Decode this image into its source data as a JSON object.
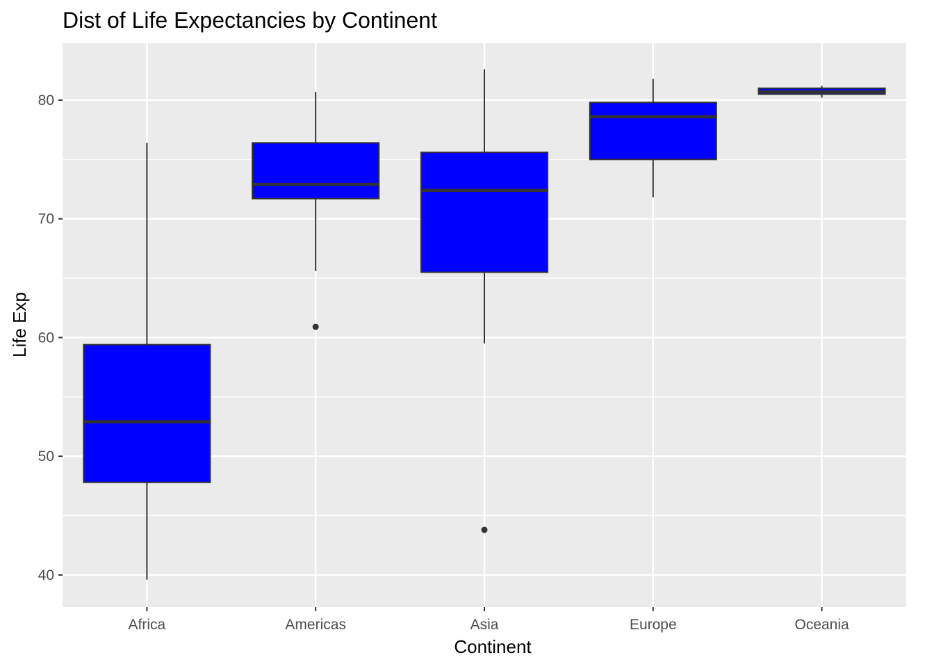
{
  "chart_data": {
    "type": "boxplot",
    "title": "Dist of Life Expectancies by Continent",
    "xlabel": "Continent",
    "ylabel": "Life Exp",
    "categories": [
      "Africa",
      "Americas",
      "Asia",
      "Europe",
      "Oceania"
    ],
    "ylim": [
      37.3,
      84.8
    ],
    "yticks": [
      40,
      50,
      60,
      70,
      80
    ],
    "ytick_labels": [
      "40",
      "50",
      "60",
      "70",
      "80"
    ],
    "grid": true,
    "box_fill": "#0000ff",
    "box_stroke": "#333333",
    "panel_background": "#ebebeb",
    "grid_color": "#ffffff",
    "boxes": [
      {
        "category": "Africa",
        "whisker_low": 39.6,
        "q1": 47.8,
        "median": 52.9,
        "q3": 59.4,
        "whisker_high": 76.4,
        "outliers": []
      },
      {
        "category": "Americas",
        "whisker_low": 65.6,
        "q1": 71.7,
        "median": 72.9,
        "q3": 76.4,
        "whisker_high": 80.7,
        "outliers": [
          60.9
        ]
      },
      {
        "category": "Asia",
        "whisker_low": 59.5,
        "q1": 65.5,
        "median": 72.4,
        "q3": 75.6,
        "whisker_high": 82.6,
        "outliers": [
          43.8
        ]
      },
      {
        "category": "Europe",
        "whisker_low": 71.8,
        "q1": 75.0,
        "median": 78.6,
        "q3": 79.8,
        "whisker_high": 81.8,
        "outliers": []
      },
      {
        "category": "Oceania",
        "whisker_low": 80.2,
        "q1": 80.5,
        "median": 80.7,
        "q3": 81.0,
        "whisker_high": 81.2,
        "outliers": []
      }
    ]
  }
}
